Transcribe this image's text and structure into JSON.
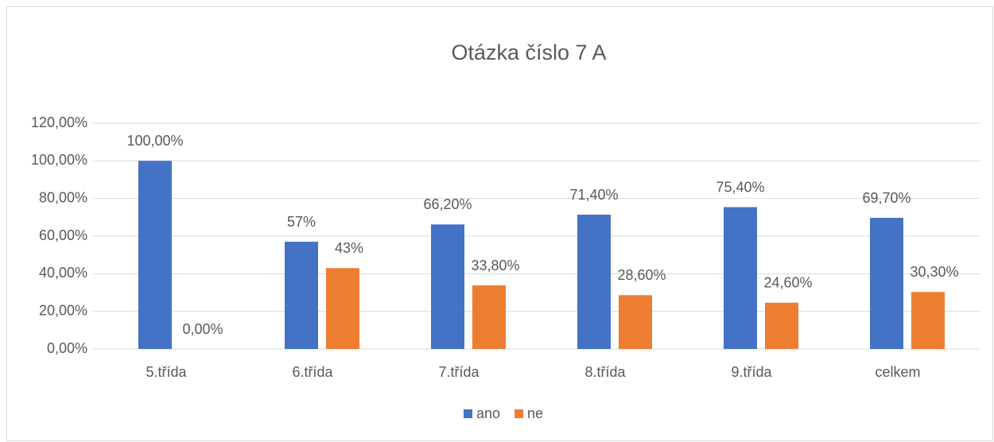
{
  "chart_data": {
    "type": "bar",
    "title": "Otázka číslo 7 A",
    "categories": [
      "5.třída",
      "6.třída",
      "7.třída",
      "8.třída",
      "9.třída",
      "celkem"
    ],
    "series": [
      {
        "name": "ano",
        "color": "#4472c4",
        "values": [
          100,
          57,
          66.2,
          71.4,
          75.4,
          69.7
        ],
        "value_labels": [
          "100,00%",
          "57%",
          "66,20%",
          "71,40%",
          "75,40%",
          "69,70%"
        ]
      },
      {
        "name": "ne",
        "color": "#ed7d31",
        "values": [
          0,
          43,
          33.8,
          28.6,
          24.6,
          30.3
        ],
        "value_labels": [
          "0,00%",
          "43%",
          "33,80%",
          "28,60%",
          "24,60%",
          "30,30%"
        ]
      }
    ],
    "ylim": [
      0,
      120
    ],
    "yticks": [
      {
        "value": 0,
        "label": "0,00%"
      },
      {
        "value": 20,
        "label": "20,00%"
      },
      {
        "value": 40,
        "label": "40,00%"
      },
      {
        "value": 60,
        "label": "60,00%"
      },
      {
        "value": 80,
        "label": "80,00%"
      },
      {
        "value": 100,
        "label": "100,00%"
      },
      {
        "value": 120,
        "label": "120,00%"
      }
    ],
    "grid": true,
    "legend": "bottom"
  }
}
